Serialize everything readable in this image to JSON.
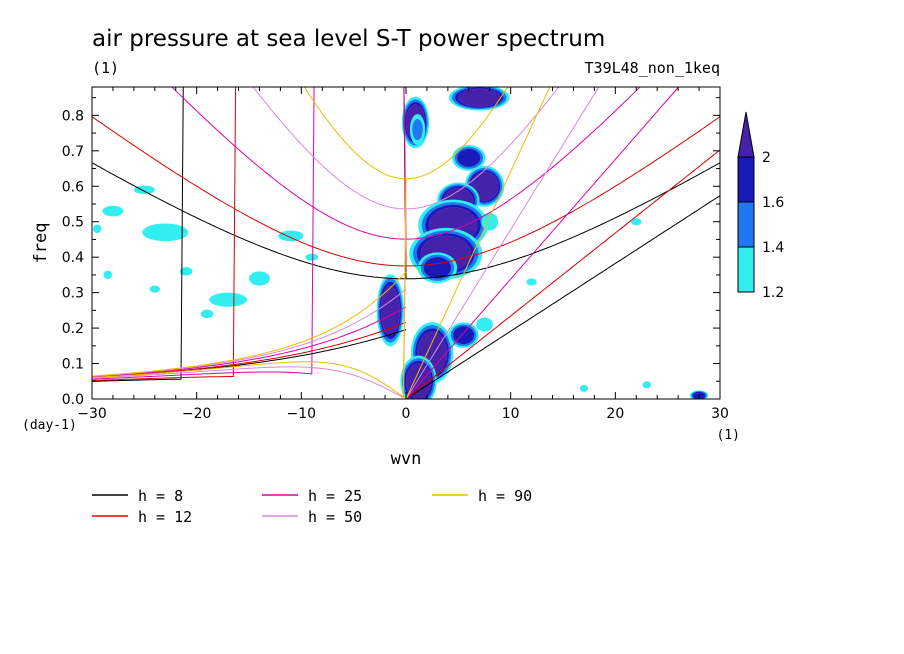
{
  "chart_data": {
    "type": "heatmap",
    "title": "air pressure at sea level S-T power spectrum",
    "subtitle_left": "(1)",
    "subtitle_right": "T39L48_non_1keq",
    "xlabel": "wvn",
    "ylabel": "freq",
    "x_unit": "(1)",
    "y_unit": "(day-1)",
    "xlim": [
      -30,
      30
    ],
    "ylim": [
      0,
      0.88
    ],
    "xticks": [
      -30,
      -20,
      -10,
      0,
      10,
      20,
      30
    ],
    "yticks": [
      0.0,
      0.1,
      0.2,
      0.3,
      0.4,
      0.5,
      0.6,
      0.7,
      0.8
    ],
    "colorbar": {
      "levels": [
        "2",
        "1.6",
        "1.4",
        "1.2"
      ],
      "colors": [
        "#4422aa",
        "#1a1ab8",
        "#1e78f0",
        "#33eef0"
      ]
    },
    "blobs": [
      {
        "x": 0.9,
        "y": 0.78,
        "rx": 0.9,
        "ry": 0.05,
        "level": 0
      },
      {
        "x": 1.1,
        "y": 0.76,
        "rx": 0.5,
        "ry": 0.03,
        "level": 2
      },
      {
        "x": 7.0,
        "y": 0.85,
        "rx": 2.0,
        "ry": 0.025,
        "level": 0
      },
      {
        "x": 6.0,
        "y": 0.68,
        "rx": 1.1,
        "ry": 0.025,
        "level": 1
      },
      {
        "x": 7.5,
        "y": 0.6,
        "rx": 1.3,
        "ry": 0.04,
        "level": 0
      },
      {
        "x": 5.0,
        "y": 0.56,
        "rx": 1.4,
        "ry": 0.035,
        "level": 0
      },
      {
        "x": 4.5,
        "y": 0.49,
        "rx": 2.3,
        "ry": 0.05,
        "level": 0
      },
      {
        "x": 3.8,
        "y": 0.41,
        "rx": 2.4,
        "ry": 0.05,
        "level": 0
      },
      {
        "x": 3.0,
        "y": 0.37,
        "rx": 1.3,
        "ry": 0.03,
        "level": 1
      },
      {
        "x": -1.5,
        "y": 0.25,
        "rx": 0.9,
        "ry": 0.07,
        "level": 0
      },
      {
        "x": 2.5,
        "y": 0.13,
        "rx": 1.4,
        "ry": 0.06,
        "level": 0
      },
      {
        "x": 1.2,
        "y": 0.05,
        "rx": 1.2,
        "ry": 0.05,
        "level": 0
      },
      {
        "x": 5.5,
        "y": 0.18,
        "rx": 1.0,
        "ry": 0.025,
        "level": 1
      },
      {
        "x": 7.5,
        "y": 0.21,
        "rx": 0.8,
        "ry": 0.02,
        "level": 3
      },
      {
        "x": -23.0,
        "y": 0.47,
        "rx": 2.2,
        "ry": 0.025,
        "level": 3
      },
      {
        "x": -28.0,
        "y": 0.53,
        "rx": 1.0,
        "ry": 0.015,
        "level": 3
      },
      {
        "x": -25.0,
        "y": 0.59,
        "rx": 1.0,
        "ry": 0.012,
        "level": 3
      },
      {
        "x": -17.0,
        "y": 0.28,
        "rx": 1.8,
        "ry": 0.02,
        "level": 3
      },
      {
        "x": -14.0,
        "y": 0.34,
        "rx": 1.0,
        "ry": 0.02,
        "level": 3
      },
      {
        "x": -21.0,
        "y": 0.36,
        "rx": 0.6,
        "ry": 0.012,
        "level": 3
      },
      {
        "x": -11.0,
        "y": 0.46,
        "rx": 1.2,
        "ry": 0.015,
        "level": 3
      },
      {
        "x": -29.5,
        "y": 0.48,
        "rx": 0.4,
        "ry": 0.012,
        "level": 3
      },
      {
        "x": 8.0,
        "y": 0.5,
        "rx": 0.8,
        "ry": 0.025,
        "level": 3
      },
      {
        "x": 28.0,
        "y": 0.01,
        "rx": 0.6,
        "ry": 0.01,
        "level": 1
      },
      {
        "x": 22.0,
        "y": 0.5,
        "rx": 0.5,
        "ry": 0.01,
        "level": 3
      },
      {
        "x": -19.0,
        "y": 0.24,
        "rx": 0.6,
        "ry": 0.012,
        "level": 3
      },
      {
        "x": -28.5,
        "y": 0.35,
        "rx": 0.4,
        "ry": 0.012,
        "level": 3
      },
      {
        "x": -24.0,
        "y": 0.31,
        "rx": 0.5,
        "ry": 0.01,
        "level": 3
      },
      {
        "x": 12.0,
        "y": 0.33,
        "rx": 0.5,
        "ry": 0.01,
        "level": 3
      },
      {
        "x": 23.0,
        "y": 0.04,
        "rx": 0.4,
        "ry": 0.01,
        "level": 3
      },
      {
        "x": 17.0,
        "y": 0.03,
        "rx": 0.4,
        "ry": 0.01,
        "level": 3
      },
      {
        "x": -9.0,
        "y": 0.4,
        "rx": 0.6,
        "ry": 0.01,
        "level": 3
      }
    ],
    "series": [
      {
        "name": "h =  8",
        "h": 8,
        "color": "#000000"
      },
      {
        "name": "h = 12",
        "h": 12,
        "color": "#dd0000"
      },
      {
        "name": "h = 25",
        "h": 25,
        "color": "#dd00aa"
      },
      {
        "name": "h = 50",
        "h": 50,
        "color": "#dd88dd"
      },
      {
        "name": "h = 90",
        "h": 90,
        "color": "#eebb00"
      }
    ],
    "legend_placement": "below-left"
  }
}
